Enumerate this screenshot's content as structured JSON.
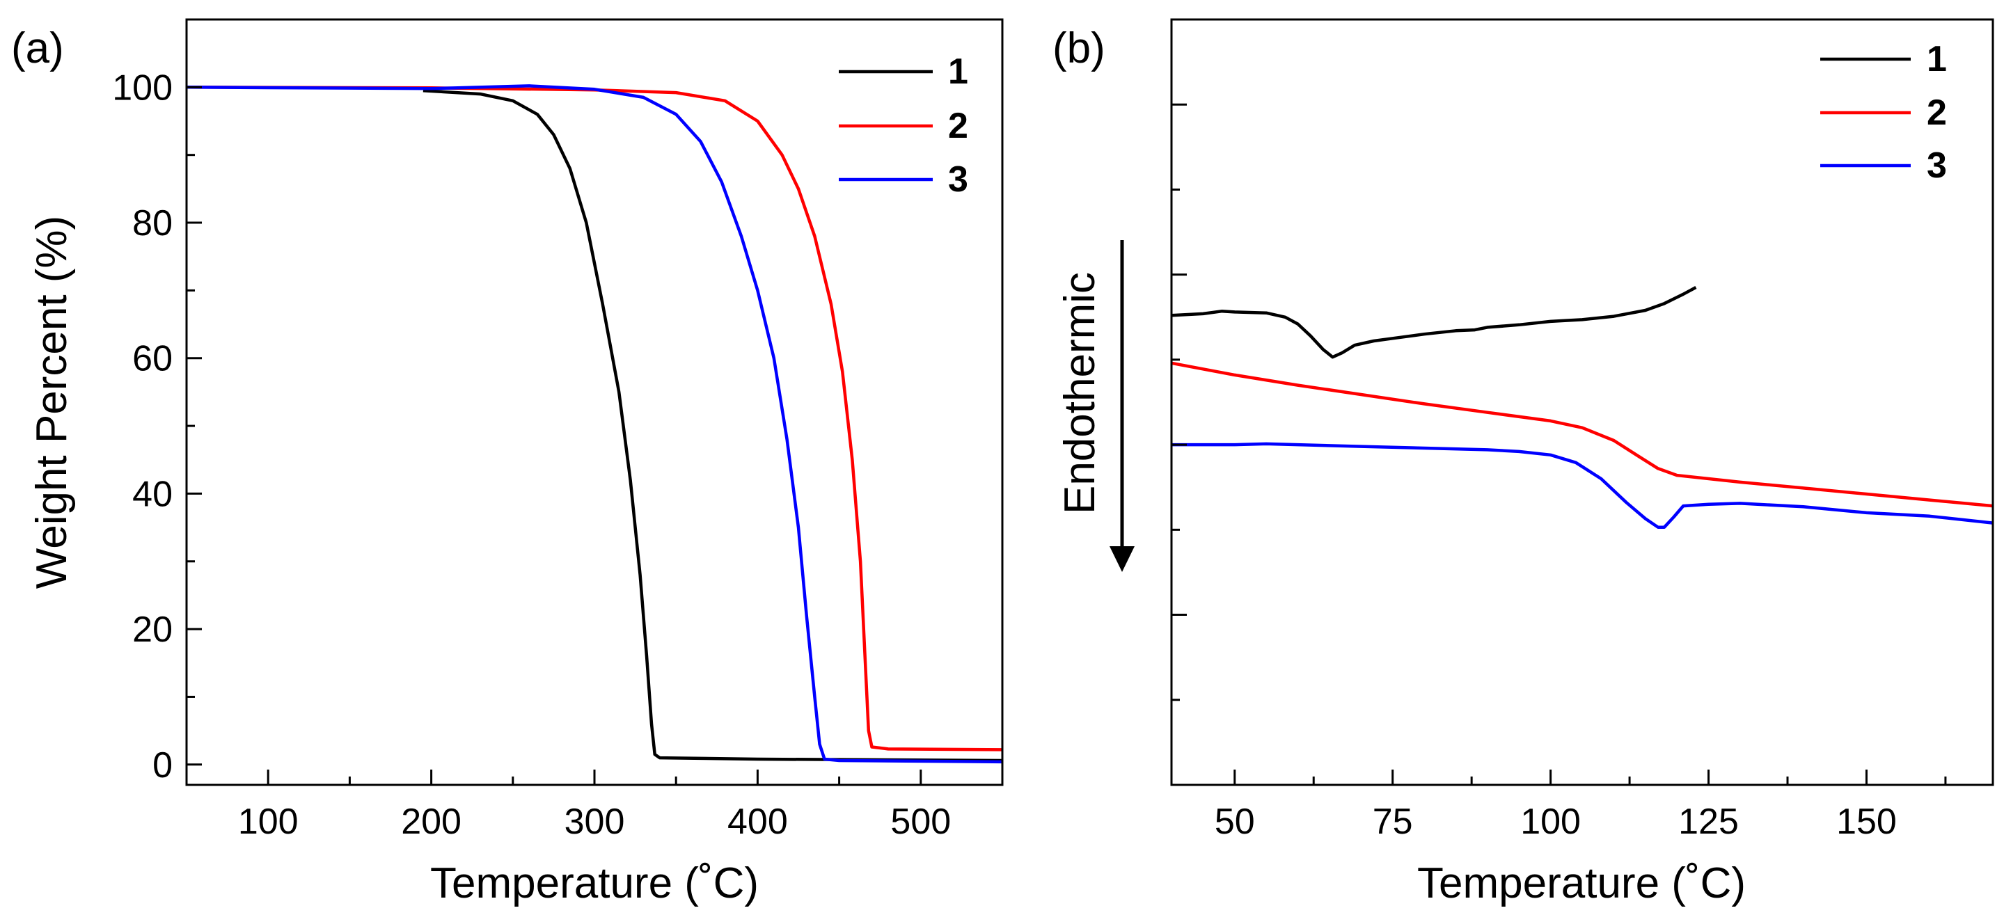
{
  "colors": {
    "series_1": "#000000",
    "series_2": "#ff0000",
    "series_3": "#0000ff",
    "axis": "#000000"
  },
  "chart_data": [
    {
      "panel_label": "(a)",
      "type": "line",
      "title": "",
      "xlabel": "Temperature (˚C)",
      "ylabel": "Weight Percent (%)",
      "xlim": [
        50,
        550
      ],
      "ylim": [
        -3,
        110
      ],
      "xticks": [
        100,
        200,
        300,
        400,
        500
      ],
      "yticks": [
        0,
        20,
        40,
        60,
        80,
        100
      ],
      "legend_position": "top-right",
      "series": [
        {
          "name": "1",
          "color": "#000000",
          "points": [
            [
              195,
              99.5
            ],
            [
              230,
              99
            ],
            [
              250,
              98
            ],
            [
              265,
              96
            ],
            [
              275,
              93
            ],
            [
              285,
              88
            ],
            [
              295,
              80
            ],
            [
              305,
              68
            ],
            [
              315,
              55
            ],
            [
              322,
              42
            ],
            [
              328,
              28
            ],
            [
              332,
              16
            ],
            [
              335,
              6
            ],
            [
              337,
              1.5
            ],
            [
              340,
              1
            ],
            [
              400,
              0.8
            ],
            [
              550,
              0.6
            ]
          ]
        },
        {
          "name": "2",
          "color": "#ff0000",
          "points": [
            [
              50,
              100
            ],
            [
              200,
              99.9
            ],
            [
              300,
              99.6
            ],
            [
              350,
              99.2
            ],
            [
              380,
              98
            ],
            [
              400,
              95
            ],
            [
              415,
              90
            ],
            [
              425,
              85
            ],
            [
              435,
              78
            ],
            [
              445,
              68
            ],
            [
              452,
              58
            ],
            [
              458,
              45
            ],
            [
              463,
              30
            ],
            [
              466,
              15
            ],
            [
              468,
              5
            ],
            [
              470,
              2.6
            ],
            [
              480,
              2.3
            ],
            [
              550,
              2.2
            ]
          ]
        },
        {
          "name": "3",
          "color": "#0000ff",
          "points": [
            [
              50,
              100
            ],
            [
              200,
              99.8
            ],
            [
              260,
              100.2
            ],
            [
              300,
              99.7
            ],
            [
              330,
              98.5
            ],
            [
              350,
              96
            ],
            [
              365,
              92
            ],
            [
              378,
              86
            ],
            [
              390,
              78
            ],
            [
              400,
              70
            ],
            [
              410,
              60
            ],
            [
              418,
              48
            ],
            [
              425,
              35
            ],
            [
              430,
              22
            ],
            [
              435,
              10
            ],
            [
              438,
              3
            ],
            [
              441,
              0.8
            ],
            [
              450,
              0.6
            ],
            [
              550,
              0.4
            ]
          ]
        }
      ]
    },
    {
      "panel_label": "(b)",
      "type": "line",
      "title": "",
      "xlabel": "Temperature (˚C)",
      "ylabel": "",
      "annotation": "Endothermic",
      "xlim": [
        40,
        170
      ],
      "ylim": [
        0,
        9
      ],
      "xticks": [
        50,
        75,
        100,
        125,
        150
      ],
      "yticks": [],
      "legend_position": "top-right",
      "series": [
        {
          "name": "1",
          "color": "#000000",
          "points": [
            [
              40,
              5.52
            ],
            [
              45,
              5.54
            ],
            [
              48,
              5.57
            ],
            [
              50,
              5.56
            ],
            [
              55,
              5.55
            ],
            [
              58,
              5.5
            ],
            [
              60,
              5.42
            ],
            [
              62,
              5.28
            ],
            [
              64,
              5.12
            ],
            [
              65.5,
              5.03
            ],
            [
              67,
              5.08
            ],
            [
              69,
              5.17
            ],
            [
              72,
              5.22
            ],
            [
              75,
              5.25
            ],
            [
              80,
              5.3
            ],
            [
              85,
              5.34
            ],
            [
              88,
              5.35
            ],
            [
              90,
              5.38
            ],
            [
              95,
              5.41
            ],
            [
              100,
              5.45
            ],
            [
              105,
              5.47
            ],
            [
              110,
              5.51
            ],
            [
              115,
              5.58
            ],
            [
              118,
              5.66
            ],
            [
              121,
              5.77
            ],
            [
              123,
              5.85
            ]
          ]
        },
        {
          "name": "2",
          "color": "#ff0000",
          "points": [
            [
              40,
              4.96
            ],
            [
              50,
              4.82
            ],
            [
              60,
              4.7
            ],
            [
              70,
              4.59
            ],
            [
              80,
              4.48
            ],
            [
              90,
              4.38
            ],
            [
              100,
              4.28
            ],
            [
              105,
              4.2
            ],
            [
              110,
              4.05
            ],
            [
              114,
              3.86
            ],
            [
              117,
              3.72
            ],
            [
              120,
              3.64
            ],
            [
              130,
              3.56
            ],
            [
              140,
              3.49
            ],
            [
              150,
              3.42
            ],
            [
              160,
              3.35
            ],
            [
              170,
              3.28
            ]
          ]
        },
        {
          "name": "3",
          "color": "#0000ff",
          "points": [
            [
              40,
              4.0
            ],
            [
              50,
              4.0
            ],
            [
              55,
              4.01
            ],
            [
              60,
              4.0
            ],
            [
              70,
              3.98
            ],
            [
              80,
              3.96
            ],
            [
              90,
              3.94
            ],
            [
              95,
              3.92
            ],
            [
              100,
              3.88
            ],
            [
              104,
              3.79
            ],
            [
              108,
              3.6
            ],
            [
              112,
              3.32
            ],
            [
              115,
              3.13
            ],
            [
              117,
              3.03
            ],
            [
              118,
              3.03
            ],
            [
              119.5,
              3.15
            ],
            [
              121,
              3.28
            ],
            [
              125,
              3.3
            ],
            [
              130,
              3.31
            ],
            [
              140,
              3.27
            ],
            [
              150,
              3.2
            ],
            [
              160,
              3.16
            ],
            [
              170,
              3.08
            ]
          ]
        }
      ]
    }
  ]
}
